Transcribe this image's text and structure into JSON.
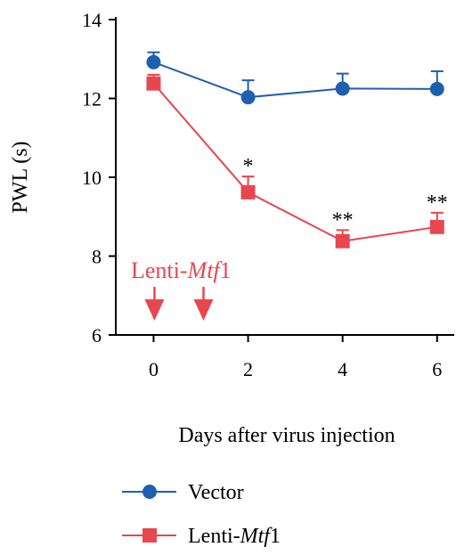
{
  "chart_data": {
    "type": "line",
    "xlabel": "Days after virus injection",
    "ylabel": "PWL (s)",
    "xlim": [
      -0.8,
      6.4
    ],
    "ylim": [
      6,
      14
    ],
    "x_ticks": [
      0,
      2,
      4,
      6
    ],
    "y_ticks": [
      6,
      8,
      10,
      12,
      14
    ],
    "grid": false,
    "legend_position": "bottom-left",
    "series": [
      {
        "name": "Vector",
        "color": "#1f5fb0",
        "marker": "circle",
        "x": [
          0,
          2,
          4,
          6
        ],
        "y": [
          12.92,
          12.03,
          12.25,
          12.24
        ],
        "error_upper": [
          0.25,
          0.43,
          0.38,
          0.45
        ]
      },
      {
        "name_prefix": "Lenti-",
        "name_italic": "Mtf",
        "name_suffix": "1",
        "color": "#e8474f",
        "marker": "square",
        "x": [
          0,
          2,
          4,
          6
        ],
        "y": [
          12.38,
          9.62,
          8.38,
          8.74
        ],
        "error_upper": [
          0.22,
          0.4,
          0.28,
          0.36
        ],
        "significance": [
          "",
          "*",
          "**",
          "**"
        ]
      }
    ],
    "annotation": {
      "prefix": "Lenti-",
      "italic": "Mtf",
      "suffix": "1",
      "color": "#e8474f",
      "arrow_days": [
        0,
        1
      ]
    }
  }
}
